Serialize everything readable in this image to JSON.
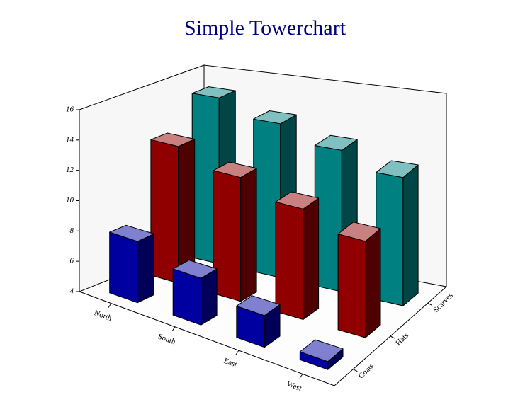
{
  "chart_data": {
    "type": "tower",
    "title": "Simple Towerchart",
    "categories": [
      "North",
      "South",
      "East",
      "West"
    ],
    "series": [
      {
        "name": "Coats",
        "color": "#0000a0",
        "values": [
          8,
          7,
          6,
          4.5
        ]
      },
      {
        "name": "Hats",
        "color": "#900000",
        "values": [
          13,
          12,
          11,
          10
        ]
      },
      {
        "name": "Scarves",
        "color": "#008080",
        "values": [
          15,
          14,
          13,
          12
        ]
      }
    ],
    "ylim": [
      4,
      16
    ],
    "yticks": [
      4,
      6,
      8,
      10,
      12,
      14,
      16
    ]
  }
}
